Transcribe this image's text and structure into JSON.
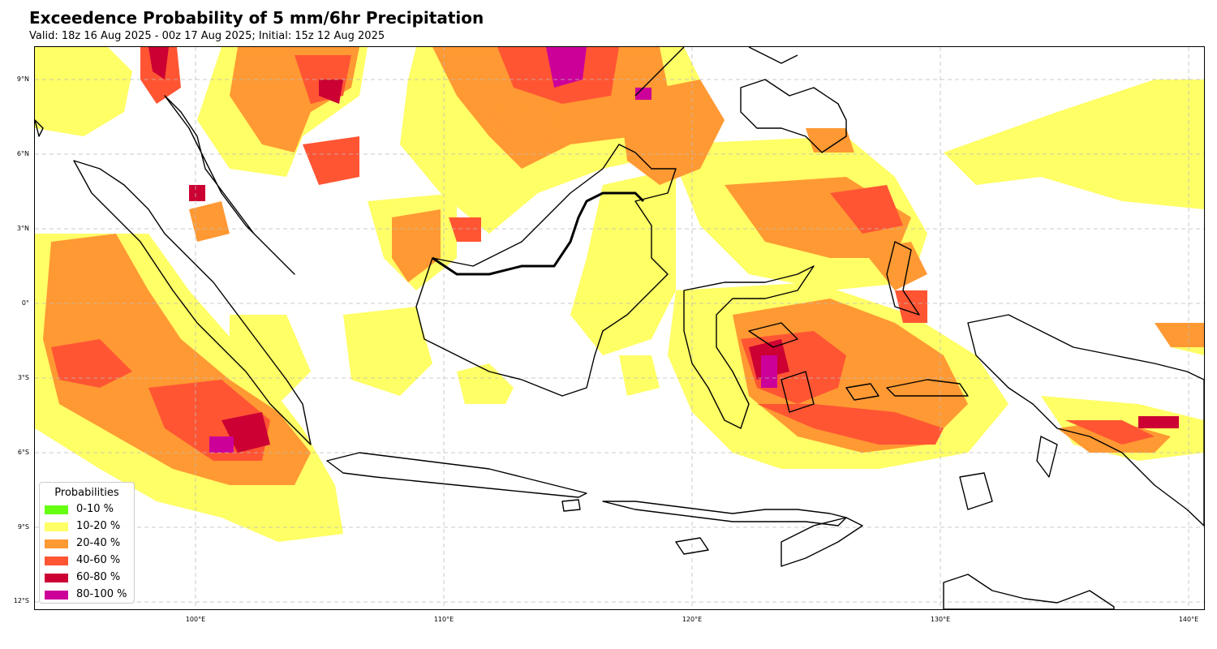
{
  "title": "Exceedence Probability of 5 mm/6hr Precipitation",
  "subtitle": "Valid: 18z 16 Aug 2025 - 00z 17 Aug 2025; Initial: 15z 12 Aug 2025",
  "axes": {
    "lat_ticks": [
      "9°N",
      "6°N",
      "3°N",
      "0°",
      "3°S",
      "6°S",
      "9°S",
      "12°S"
    ],
    "lon_ticks": [
      "100°E",
      "110°E",
      "120°E",
      "130°E",
      "140°E"
    ]
  },
  "legend": {
    "title": "Probabilities",
    "items": [
      {
        "label": "0-10 %",
        "color": "#66ff11"
      },
      {
        "label": "10-20 %",
        "color": "#ffff66"
      },
      {
        "label": "20-40 %",
        "color": "#ff9933"
      },
      {
        "label": "40-60 %",
        "color": "#ff5533"
      },
      {
        "label": "60-80 %",
        "color": "#cc0033"
      },
      {
        "label": "80-100 %",
        "color": "#cc0099"
      }
    ]
  },
  "map": {
    "gridlines": "dashed",
    "projection": "PlateCarree",
    "extent_note": "Indonesia / Maritime Continent"
  }
}
